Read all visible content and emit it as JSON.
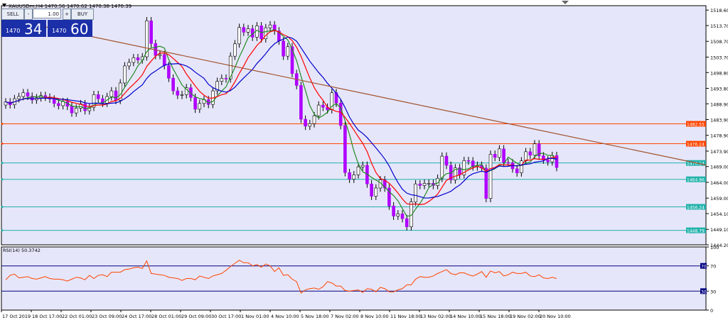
{
  "header": {
    "symbol_line": "XAUUSDm,H4 1470.56 1470.62 1470.38 1470.39"
  },
  "trade_panel": {
    "sell_label": "SELL",
    "buy_label": "BUY",
    "lot": "1.00",
    "sell_prefix": "1470",
    "sell_big": "34",
    "buy_prefix": "1470",
    "buy_big": "60",
    "minus": "-",
    "plus": "+"
  },
  "rsi_label": "RSI(14) 50.3742",
  "colors": {
    "background": "#e6e6fa",
    "ma_fast": "#228B22",
    "ma_mid": "#ff0000",
    "ma_slow": "#0000cd",
    "bull_candle": "#b000ff",
    "bear_candle": "#7b00a8",
    "trendline": "#a0522d",
    "hline_orange": "#ff4500",
    "hline_teal": "#20b2aa",
    "rsi_line": "#ff4500",
    "rsi_level": "#000080"
  },
  "chart_data": [
    {
      "type": "candlestick",
      "title": "XAUUSDm,H4",
      "y_ticks": [
        "1518.60",
        "1513.70",
        "1508.70",
        "1503.70",
        "1498.80",
        "1493.80",
        "1488.90",
        "1483.90",
        "1478.90",
        "1473.90",
        "1469.00",
        "1464.00",
        "1459.00",
        "1454.10",
        "1449.10",
        "1444.20"
      ],
      "ylim": [
        1444.2,
        1520.0
      ],
      "x_ticks": [
        "17 Oct 2019",
        "18 Oct 17:00",
        "22 Oct 01:00",
        "23 Oct 09:00",
        "24 Oct 17:00",
        "28 Oct 01:00",
        "29 Oct 09:00",
        "30 Oct 17:00",
        "1 Nov 01:00",
        "4 Nov 10:00",
        "5 Nov 18:00",
        "7 Nov 02:00",
        "8 Nov 10:00",
        "11 Nov 18:00",
        "13 Nov 02:00",
        "14 Nov 10:00",
        "15 Nov 18:00",
        "19 Nov 02:00",
        "20 Nov 10:00"
      ],
      "series": [
        {
          "name": "XAUUSDm",
          "closes": [
            1489.5,
            1488.6,
            1490.5,
            1491.2,
            1492.4,
            1491.3,
            1490.1,
            1490.8,
            1491.5,
            1491.0,
            1490.4,
            1489.0,
            1488.3,
            1489.6,
            1488.1,
            1486.0,
            1487.5,
            1488.9,
            1486.7,
            1487.8,
            1491.8,
            1490.5,
            1489.1,
            1491.2,
            1493.0,
            1490.0,
            1495.5,
            1500.9,
            1502.0,
            1503.5,
            1502.8,
            1503.8,
            1515.2,
            1508.0,
            1504.2,
            1504.5,
            1501.0,
            1497.0,
            1493.0,
            1491.6,
            1491.8,
            1494.0,
            1490.9,
            1487.2,
            1489.0,
            1490.2,
            1488.7,
            1493.0,
            1496.0,
            1497.0,
            1496.8,
            1504.0,
            1507.9,
            1513.1,
            1511.6,
            1512.7,
            1510.0,
            1513.6,
            1509.5,
            1513.0,
            1513.9,
            1512.0,
            1508.8,
            1504.0,
            1507.0,
            1498.5,
            1494.7,
            1484.0,
            1481.8,
            1482.6,
            1485.1,
            1488.5,
            1487.8,
            1487.0,
            1492.4,
            1489.1,
            1482.0,
            1467.1,
            1465.0,
            1466.4,
            1468.9,
            1469.4,
            1463.5,
            1459.6,
            1462.2,
            1464.8,
            1462.2,
            1456.5,
            1453.3,
            1454.0,
            1452.5,
            1449.9,
            1457.8,
            1463.5,
            1463.0,
            1463.7,
            1463.7,
            1463.0,
            1465.3,
            1472.3,
            1469.4,
            1464.8,
            1468.6,
            1466.4,
            1470.9,
            1470.8,
            1468.9,
            1469.4,
            1468.5,
            1458.9,
            1472.9,
            1471.9,
            1474.6,
            1470.3,
            1470.2,
            1468.3,
            1467.0,
            1470.8,
            1473.7,
            1472.6,
            1476.2,
            1472.4,
            1471.1,
            1470.5,
            1472.5,
            1468.7
          ]
        }
      ],
      "overlays": [
        "ma_fast",
        "ma_mid",
        "ma_slow"
      ],
      "price_labels": [
        "1482.55",
        "1476.24",
        "1470.14",
        "1464.96",
        "1456.24",
        "1448.79"
      ]
    },
    {
      "type": "line",
      "title": "RSI(14) 50.3742",
      "y_ticks": [
        "100",
        "70",
        "30",
        "0"
      ],
      "ylim": [
        0,
        100
      ],
      "levels": [
        70,
        30
      ],
      "series": [
        {
          "name": "RSI(14)",
          "values": [
            48,
            55,
            57,
            51,
            52,
            53,
            50,
            49,
            51,
            53,
            50,
            49,
            49,
            48,
            46,
            49,
            52,
            51,
            48,
            55,
            50,
            55,
            56,
            53,
            60,
            60,
            60,
            64,
            65,
            67,
            68,
            66,
            78,
            58,
            57,
            56,
            55,
            52,
            51,
            50,
            47,
            50,
            50,
            48,
            54,
            52,
            50,
            54,
            56,
            58,
            63,
            69,
            74,
            79,
            75,
            75,
            70,
            72,
            68,
            73,
            70,
            61,
            67,
            55,
            56,
            49,
            45,
            27,
            32,
            34,
            35,
            33,
            37,
            45,
            43,
            38,
            38,
            31,
            30,
            31,
            32,
            28,
            34,
            33,
            29,
            36,
            34,
            29,
            29,
            32,
            34,
            40,
            40,
            49,
            53,
            52,
            52,
            54,
            58,
            61,
            64,
            58,
            56,
            59,
            59,
            56,
            54,
            57,
            61,
            52,
            62,
            59,
            61,
            54,
            56,
            60,
            58,
            58,
            60,
            54,
            53,
            56,
            51,
            50,
            52,
            50
          ]
        }
      ]
    }
  ]
}
